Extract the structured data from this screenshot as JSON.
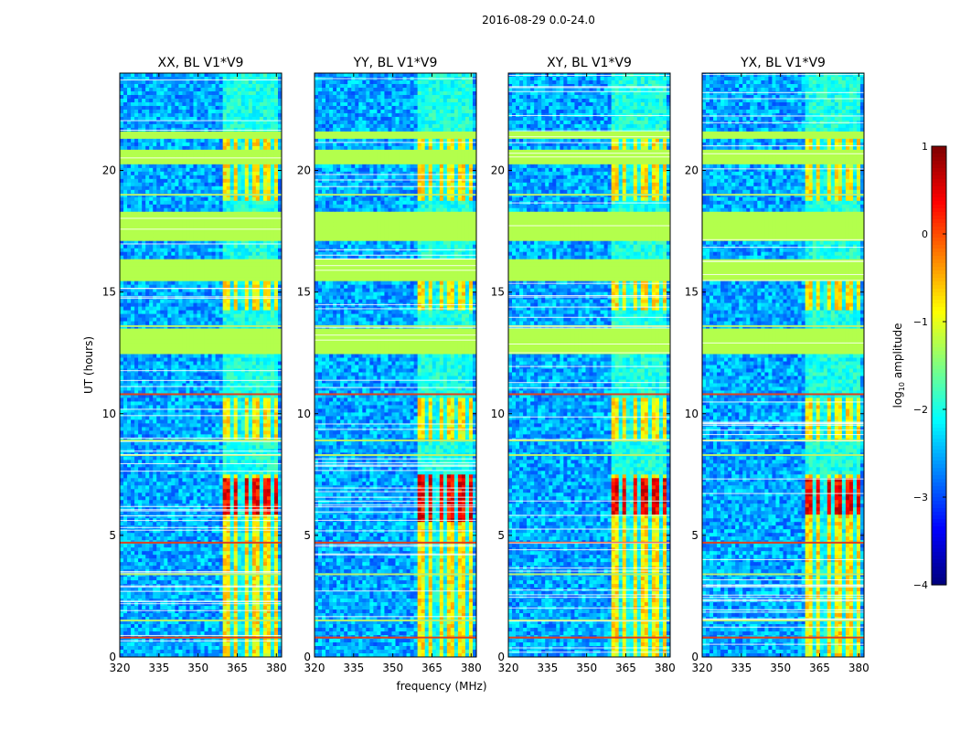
{
  "figure_title": "2016-08-29 0.0-24.0",
  "chart_data": {
    "type": "heatmap",
    "suptitle": "2016-08-29 0.0-24.0",
    "xlabel": "frequency (MHz)",
    "ylabel": "UT (hours)",
    "xlim": [
      320,
      382
    ],
    "ylim": [
      0,
      24
    ],
    "xticks": [
      320,
      335,
      350,
      365,
      380
    ],
    "yticks": [
      0,
      5,
      10,
      15,
      20
    ],
    "panels": [
      {
        "title": "XX, BL V1*V9",
        "show_ylabel": true,
        "show_xlabel": false,
        "peak_band": [
          5.8,
          7.4
        ]
      },
      {
        "title": "YY, BL V1*V9",
        "show_ylabel": false,
        "show_xlabel": true,
        "peak_band": [
          5.6,
          7.6
        ]
      },
      {
        "title": "XY, BL V1*V9",
        "show_ylabel": false,
        "show_xlabel": false,
        "peak_band": [
          5.8,
          7.4
        ]
      },
      {
        "title": "YX, BL V1*V9",
        "show_ylabel": false,
        "show_xlabel": false,
        "peak_band": [
          5.8,
          7.4
        ]
      }
    ],
    "active_band_mhz": [
      359,
      381
    ],
    "channel_gaps_mhz": [
      362.5,
      366.5,
      370.5,
      374.5,
      378.5
    ],
    "active_time_ranges_hours": [
      [
        0,
        7.5
      ],
      [
        8.8,
        10.6
      ],
      [
        14.3,
        15.5
      ],
      [
        18.8,
        21.5
      ]
    ],
    "flagged_time_ranges_hours": [
      [
        12.5,
        13.5
      ],
      [
        15.5,
        16.3
      ],
      [
        17.1,
        18.3
      ],
      [
        20.2,
        20.8
      ],
      [
        21.3,
        21.6
      ]
    ],
    "rfi_lines_hours": [
      0.8,
      1.5,
      3.4,
      4.7,
      8.3,
      8.9,
      10.8,
      13.6,
      19.0
    ],
    "colorbar": {
      "label": "log10 amplitude",
      "label_main": "log",
      "label_sub": "10",
      "label_rest": " amplitude",
      "range": [
        -4,
        1
      ],
      "ticks": [
        1,
        0,
        -1,
        -2,
        -3,
        -4
      ],
      "tick_labels": [
        "1",
        "0",
        "−1",
        "−2",
        "−3",
        "−4"
      ],
      "colormap": "jet"
    }
  }
}
